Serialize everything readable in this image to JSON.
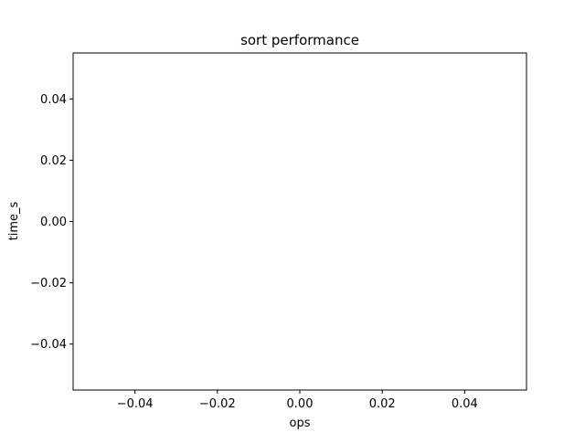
{
  "chart_data": {
    "type": "scatter",
    "title": "sort performance",
    "xlabel": "ops",
    "ylabel": "time_s",
    "xlim": [
      -0.055,
      0.055
    ],
    "ylim": [
      -0.055,
      0.055
    ],
    "xticks": [
      -0.04,
      -0.02,
      0.0,
      0.02,
      0.04
    ],
    "yticks": [
      -0.04,
      -0.02,
      0.0,
      0.02,
      0.04
    ],
    "xtick_labels": [
      "−0.04",
      "−0.02",
      "0.00",
      "0.02",
      "0.04"
    ],
    "ytick_labels": [
      "−0.04",
      "−0.02",
      "0.00",
      "0.02",
      "0.04"
    ],
    "grid": false,
    "series": []
  }
}
